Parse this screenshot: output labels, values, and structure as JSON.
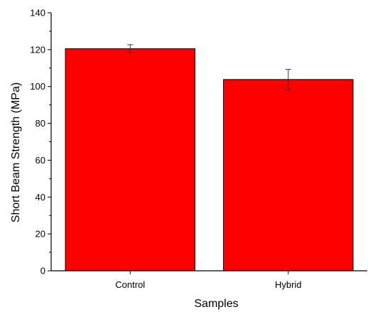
{
  "chart_data": {
    "type": "bar",
    "categories": [
      "Control",
      "Hybrid"
    ],
    "values": [
      120.5,
      103.8
    ],
    "errors": [
      2.2,
      5.5
    ],
    "xlabel": "Samples",
    "ylabel": "Short Beam Strength (MPa)",
    "ylim": [
      0,
      140
    ],
    "yticks": [
      0,
      20,
      40,
      60,
      80,
      100,
      120,
      140
    ],
    "bar_color": "#ff0000",
    "edge_color": "#000000",
    "grid": false,
    "legend": "none"
  }
}
